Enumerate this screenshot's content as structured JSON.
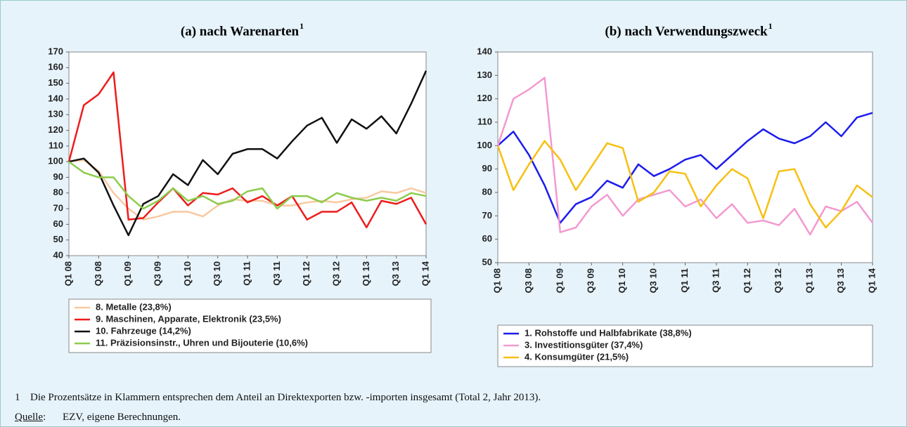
{
  "chart_data": [
    {
      "type": "line",
      "title": "(a) nach Warenarten",
      "title_superscript": "1",
      "categories": [
        "Q1 08",
        null,
        "Q3 08",
        null,
        "Q1 09",
        null,
        "Q3 09",
        null,
        "Q1 10",
        null,
        "Q3 10",
        null,
        "Q1 11",
        null,
        "Q3 11",
        null,
        "Q1 12",
        null,
        "Q3 12",
        null,
        "Q1 13",
        null,
        "Q3 13",
        null,
        "Q1 14"
      ],
      "ylim": [
        40,
        170
      ],
      "yticks": [
        40,
        50,
        60,
        70,
        80,
        90,
        100,
        110,
        120,
        130,
        140,
        150,
        160,
        170
      ],
      "grid": false,
      "legend": "bottom",
      "series": [
        {
          "name": "8. Metalle (23,8%)",
          "color": "#f9c9a0",
          "values": [
            100,
            101,
            94,
            80,
            70,
            63,
            65,
            68,
            68,
            65,
            72,
            76,
            75,
            75,
            72,
            72,
            74,
            75,
            74,
            76,
            77,
            81,
            80,
            83,
            80
          ]
        },
        {
          "name": "9. Maschinen, Apparate, Elektronik (23,5%)",
          "color": "#ee1c1c",
          "values": [
            100,
            136,
            143,
            157,
            63,
            64,
            74,
            83,
            72,
            80,
            79,
            83,
            74,
            78,
            72,
            78,
            63,
            68,
            68,
            74,
            58,
            75,
            73,
            77,
            60
          ]
        },
        {
          "name": "10. Fahrzeuge (14,2%)",
          "color": "#111111",
          "values": [
            100,
            102,
            93,
            72,
            53,
            73,
            78,
            92,
            85,
            101,
            92,
            105,
            108,
            108,
            102,
            113,
            123,
            128,
            112,
            127,
            121,
            129,
            118,
            137,
            158
          ]
        },
        {
          "name": "11. Präzisionsinstr., Uhren und Bijouterie (10,6%)",
          "color": "#8ccc4c",
          "values": [
            100,
            93,
            90,
            90,
            78,
            70,
            75,
            83,
            75,
            78,
            73,
            75,
            81,
            83,
            70,
            78,
            78,
            74,
            80,
            77,
            75,
            77,
            75,
            80,
            78
          ]
        }
      ]
    },
    {
      "type": "line",
      "title": "(b) nach Verwendungszweck",
      "title_superscript": "1",
      "categories": [
        "Q1 08",
        null,
        "Q3 08",
        null,
        "Q1 09",
        null,
        "Q3 09",
        null,
        "Q1 10",
        null,
        "Q3 10",
        null,
        "Q1 11",
        null,
        "Q3 11",
        null,
        "Q1 12",
        null,
        "Q3 12",
        null,
        "Q1 13",
        null,
        "Q3 13",
        null,
        "Q1 14"
      ],
      "ylim": [
        50,
        140
      ],
      "yticks": [
        50,
        60,
        70,
        80,
        90,
        100,
        110,
        120,
        130,
        140
      ],
      "grid": false,
      "legend": "bottom",
      "series": [
        {
          "name": "1. Rohstoffe und Halbfabrikate (38,8%)",
          "color": "#1c1cee",
          "values": [
            100,
            106,
            96,
            83,
            67,
            75,
            78,
            85,
            82,
            92,
            87,
            90,
            94,
            96,
            90,
            96,
            102,
            107,
            103,
            101,
            104,
            110,
            104,
            112,
            114
          ]
        },
        {
          "name": "3. Investitionsgüter (37,4%)",
          "color": "#f39ad0",
          "values": [
            100,
            120,
            124,
            129,
            63,
            65,
            74,
            79,
            70,
            77,
            79,
            81,
            74,
            77,
            69,
            75,
            67,
            68,
            66,
            73,
            62,
            74,
            72,
            76,
            67
          ]
        },
        {
          "name": "4. Konsumgüter (21,5%)",
          "color": "#f7c012",
          "values": [
            100,
            81,
            92,
            102,
            94,
            81,
            91,
            101,
            99,
            76,
            80,
            89,
            88,
            74,
            83,
            90,
            86,
            69,
            89,
            90,
            75,
            65,
            72,
            83,
            78
          ]
        }
      ]
    }
  ],
  "footnote": {
    "number": "1",
    "text": "Die Prozentsätze in Klammern entsprechen dem Anteil an Direktexporten bzw. -importen insgesamt (Total 2, Jahr 2013)."
  },
  "source": {
    "label": "Quelle",
    "colon": ":",
    "text": "EZV, eigene Berechnungen."
  }
}
